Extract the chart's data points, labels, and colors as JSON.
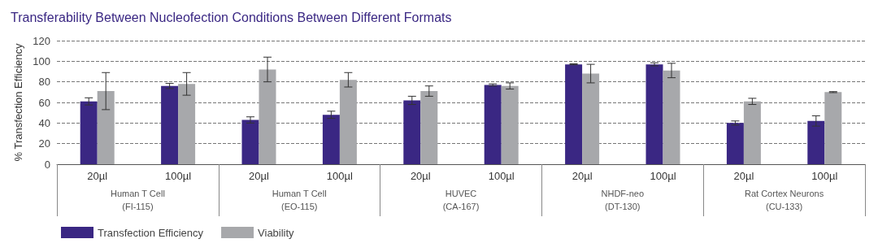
{
  "chart_data": {
    "type": "bar",
    "title": "Transferability Between Nucleofection Conditions Between Different Formats",
    "ylabel": "% Transfection Efficiency",
    "categories": [
      "20µl",
      "100µl",
      "20µl",
      "100µl",
      "20µl",
      "100µl",
      "20µl",
      "100µl",
      "20µl",
      "100µl"
    ],
    "annotations": [
      "Human T Cell\n(FI-115)",
      "Human T Cell\n(EO-115)",
      "HUVEC\n(CA-167)",
      "NHDF-neo\n(DT-130)",
      "Rat Cortex Neurons\n(CU-133)"
    ],
    "series": [
      {
        "name": "Transfection Efficiency",
        "color": "#3a2783",
        "values": [
          61,
          76,
          43,
          48,
          62,
          77,
          97,
          97,
          40,
          42
        ],
        "errors": [
          3.5,
          2.5,
          3,
          3.5,
          4,
          1,
          0.5,
          1.5,
          2,
          5
        ]
      },
      {
        "name": "Viability",
        "color": "#a7a8ab",
        "values": [
          71,
          78,
          92,
          82,
          71,
          76,
          88,
          91,
          61,
          70
        ],
        "errors": [
          18,
          11,
          12,
          7,
          5,
          3,
          9,
          7,
          3,
          0.5
        ]
      }
    ],
    "ylim": [
      0,
      120
    ],
    "yticks": [
      0,
      20,
      40,
      60,
      80,
      100,
      120
    ],
    "grid": "y",
    "legend": "bottom left"
  }
}
